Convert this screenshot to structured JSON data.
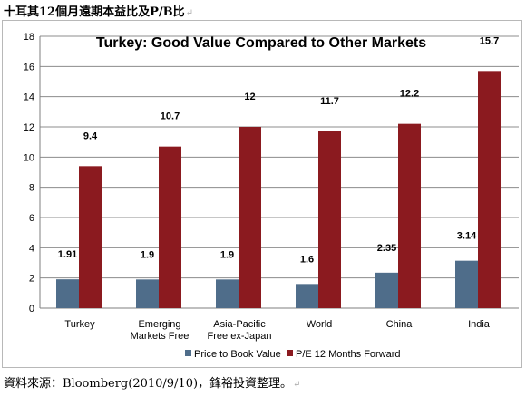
{
  "page": {
    "heading": "十耳其12個月遠期本益比及P/B比",
    "source": "資料來源：Bloomberg(2010/9/10)，鋒裕投資整理。",
    "paragraph_mark": "↵"
  },
  "chart_data": {
    "type": "bar",
    "title": "Turkey: Good Value Compared to Other Markets",
    "xlabel": "",
    "ylabel": "",
    "ylim": [
      0,
      18
    ],
    "yticks": [
      0,
      2,
      4,
      6,
      8,
      10,
      12,
      14,
      16,
      18
    ],
    "grid": true,
    "legend_position": "bottom",
    "categories": [
      [
        "Turkey"
      ],
      [
        "Emerging",
        "Markets Free"
      ],
      [
        "Asia-Pacific",
        "Free ex-Japan"
      ],
      [
        "World"
      ],
      [
        "China"
      ],
      [
        "India"
      ]
    ],
    "series": [
      {
        "name": "Price to Book Value",
        "color": "#4f6d8a",
        "values": [
          1.91,
          1.9,
          1.9,
          1.6,
          2.35,
          3.14
        ],
        "labels": [
          "1.91",
          "1.9",
          "1.9",
          "1.6",
          "2.35",
          "3.14"
        ]
      },
      {
        "name": "P/E 12 Months Forward",
        "color": "#8b1a1f",
        "values": [
          9.4,
          10.7,
          12,
          11.7,
          12.2,
          15.7
        ],
        "labels": [
          "9.4",
          "10.7",
          "12",
          "11.7",
          "12.2",
          "15.7"
        ]
      }
    ]
  }
}
